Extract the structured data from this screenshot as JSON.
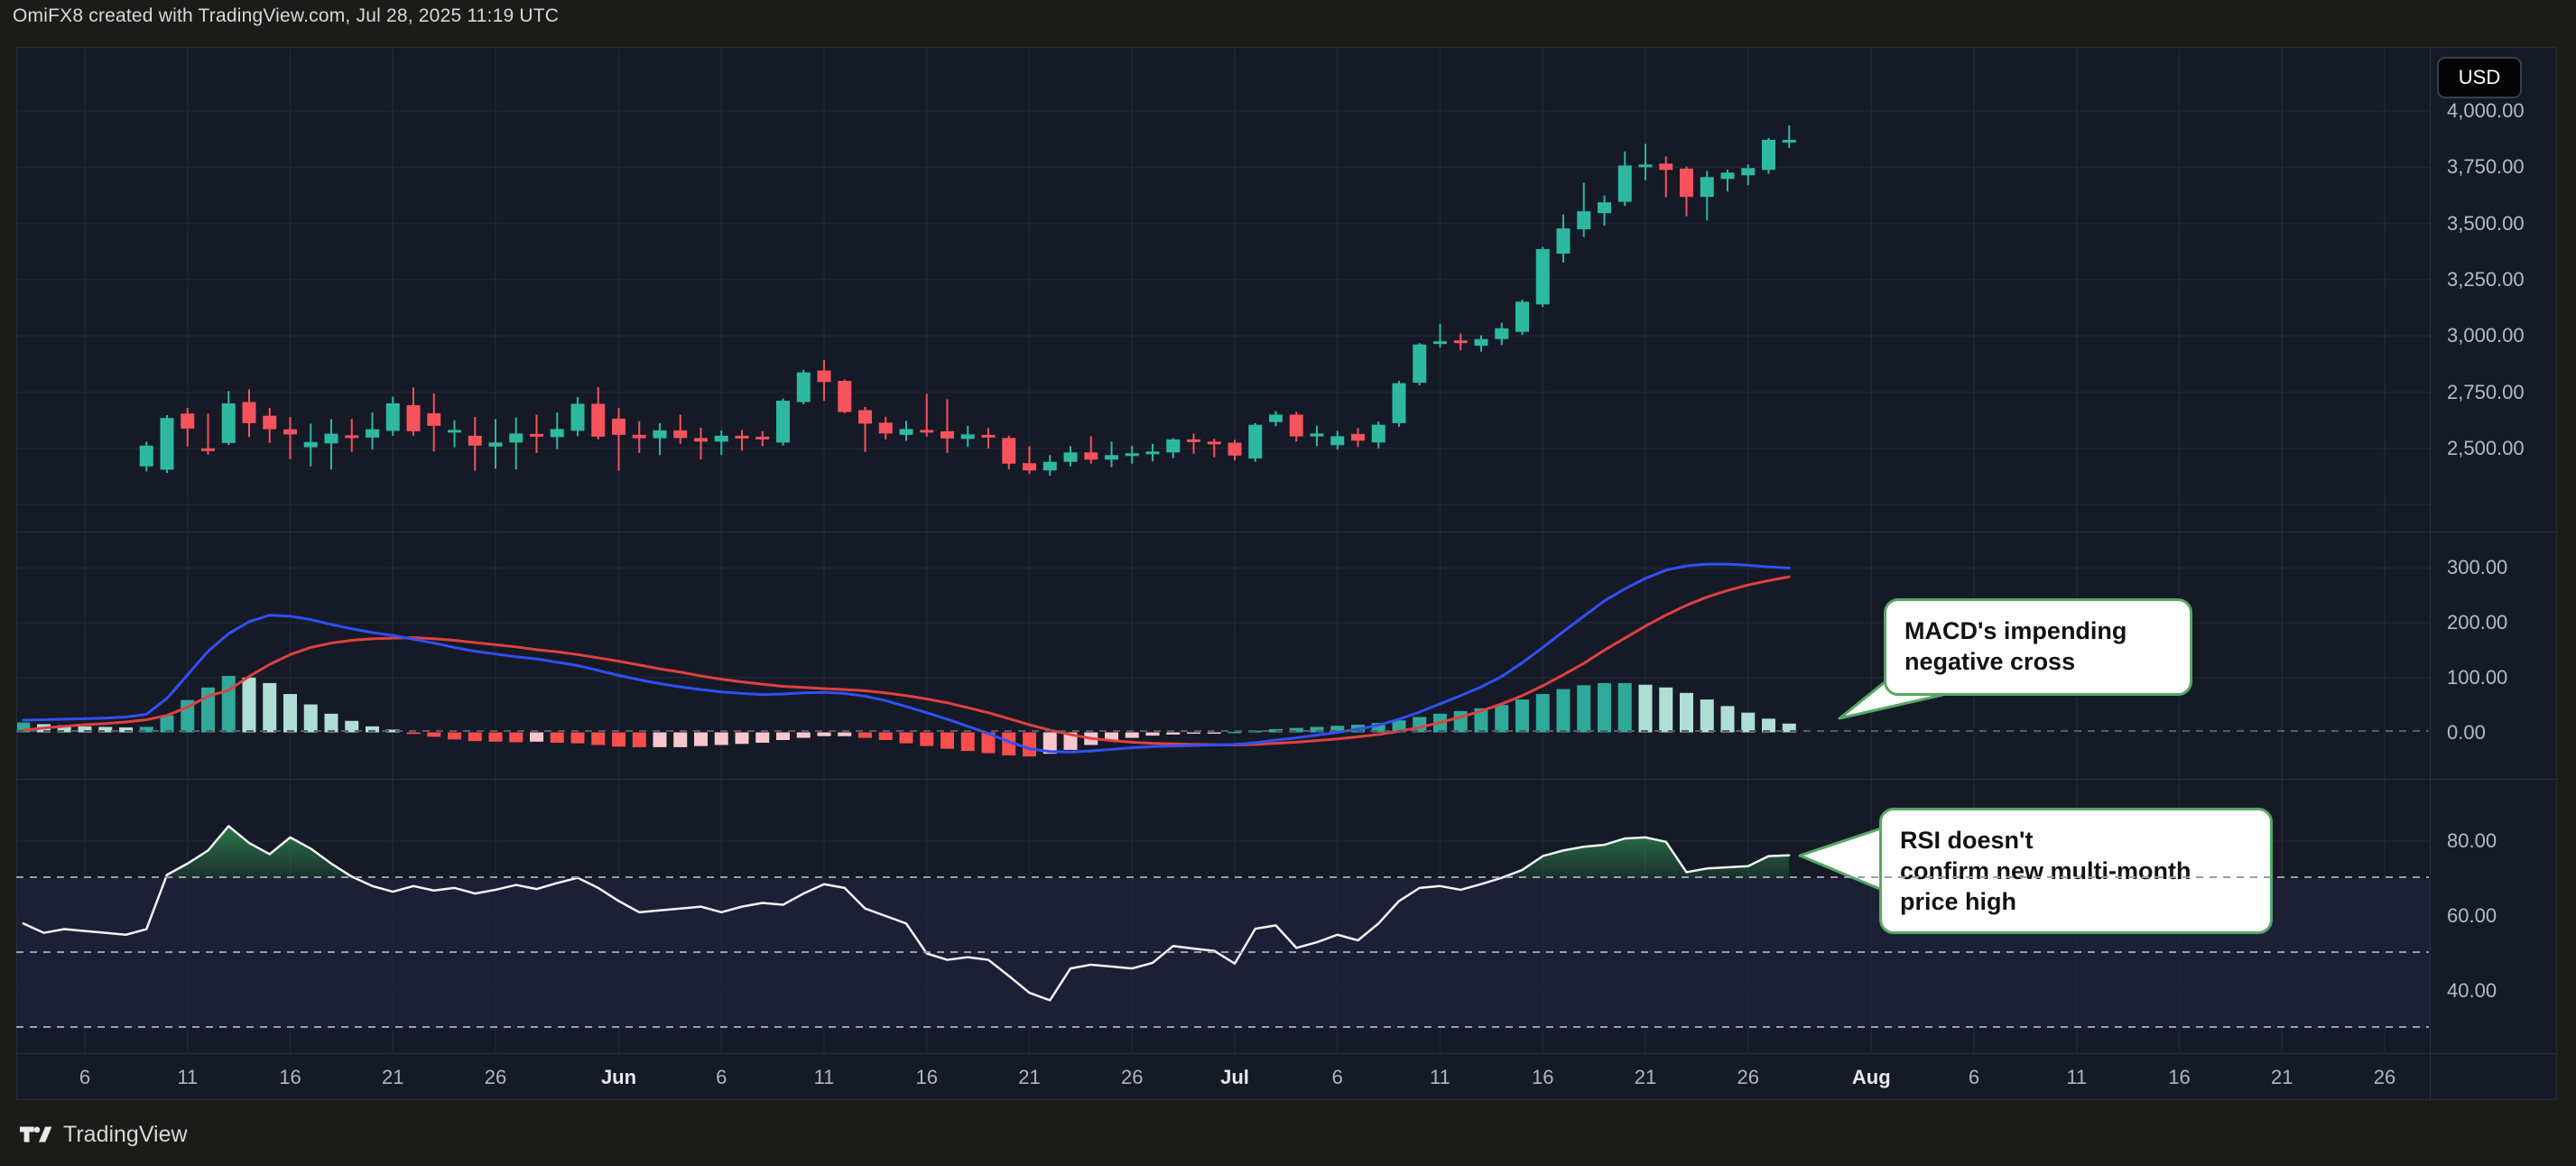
{
  "header": {
    "title": "OmiFX8 created with TradingView.com, Jul 28, 2025 11:19 UTC"
  },
  "footer": {
    "brand": "TradingView"
  },
  "price_axis": {
    "currency_label": "USD",
    "labels": [
      "4,000.00",
      "3,750.00",
      "3,500.00",
      "3,250.00",
      "3,000.00",
      "2,750.00",
      "2,500.00"
    ],
    "values": [
      4000,
      3750,
      3500,
      3250,
      3000,
      2750,
      2500
    ],
    "extra_grid": [
      2250
    ]
  },
  "macd_axis": {
    "labels": [
      "300.00",
      "200.00",
      "100.00",
      "0.00"
    ],
    "values": [
      300,
      200,
      100,
      0
    ],
    "zero_dashed": 0
  },
  "rsi_axis": {
    "labels": [
      "80.00",
      "60.00",
      "40.00"
    ],
    "values": [
      80,
      60,
      40
    ],
    "dashed_levels": [
      70,
      50,
      30
    ],
    "band": [
      30,
      70
    ]
  },
  "x_axis": {
    "start_date": "2025-05-06",
    "ticks": [
      {
        "label": "6",
        "day": 0,
        "month": false
      },
      {
        "label": "11",
        "day": 5,
        "month": false
      },
      {
        "label": "16",
        "day": 10,
        "month": false
      },
      {
        "label": "21",
        "day": 15,
        "month": false
      },
      {
        "label": "26",
        "day": 20,
        "month": false
      },
      {
        "label": "Jun",
        "day": 26,
        "month": true
      },
      {
        "label": "6",
        "day": 31,
        "month": false
      },
      {
        "label": "11",
        "day": 36,
        "month": false
      },
      {
        "label": "16",
        "day": 41,
        "month": false
      },
      {
        "label": "21",
        "day": 46,
        "month": false
      },
      {
        "label": "26",
        "day": 51,
        "month": false
      },
      {
        "label": "Jul",
        "day": 56,
        "month": true
      },
      {
        "label": "6",
        "day": 61,
        "month": false
      },
      {
        "label": "11",
        "day": 66,
        "month": false
      },
      {
        "label": "16",
        "day": 71,
        "month": false
      },
      {
        "label": "21",
        "day": 76,
        "month": false
      },
      {
        "label": "26",
        "day": 81,
        "month": false
      },
      {
        "label": "Aug",
        "day": 87,
        "month": true
      },
      {
        "label": "6",
        "day": 92,
        "month": false
      },
      {
        "label": "11",
        "day": 97,
        "month": false
      },
      {
        "label": "16",
        "day": 102,
        "month": false
      },
      {
        "label": "21",
        "day": 107,
        "month": false
      },
      {
        "label": "26",
        "day": 112,
        "month": false
      }
    ]
  },
  "annotations": {
    "macd_note": {
      "lines": [
        "MACD's impending",
        "negative cross"
      ]
    },
    "rsi_note": {
      "lines": [
        "RSI doesn't",
        "confirm new multi-month",
        "price high"
      ]
    }
  },
  "colors": {
    "up": "#2CB9A0",
    "down": "#F6535C",
    "macd_line": "#3050F8",
    "signal_line": "#E04040",
    "hist_up_rise": "#2FA99A",
    "hist_up_fall": "#AFDED6",
    "hist_dn_fall": "#FA4D4D",
    "hist_dn_rise": "#F8C6CD",
    "rsi_line": "#F2F3F5",
    "rsi_fill": "#2F8C4F",
    "grid": "#1F2532",
    "band_purple": "rgba(129,102,255,0.08)",
    "pane_bg": "#151A26",
    "page_bg": "#1B1B17"
  },
  "chart_data": {
    "type": "candlestick",
    "title": "Price with MACD and RSI panes",
    "currency": "USD",
    "interval": "1D",
    "price_pane": {
      "ylim": [
        2130,
        4281
      ],
      "candles_start_day": 3,
      "candles_start_date": "2025-05-09",
      "ohlc": [
        [
          2420,
          2530,
          2398,
          2512
        ],
        [
          2405,
          2648,
          2390,
          2635
        ],
        [
          2655,
          2680,
          2508,
          2588
        ],
        [
          2500,
          2655,
          2472,
          2488
        ],
        [
          2524,
          2755,
          2515,
          2700
        ],
        [
          2706,
          2762,
          2550,
          2612
        ],
        [
          2645,
          2680,
          2525,
          2585
        ],
        [
          2585,
          2640,
          2452,
          2562
        ],
        [
          2505,
          2610,
          2420,
          2528
        ],
        [
          2522,
          2630,
          2406,
          2565
        ],
        [
          2558,
          2630,
          2485,
          2548
        ],
        [
          2548,
          2660,
          2495,
          2585
        ],
        [
          2578,
          2730,
          2556,
          2700
        ],
        [
          2692,
          2770,
          2556,
          2576
        ],
        [
          2656,
          2745,
          2486,
          2600
        ],
        [
          2578,
          2625,
          2506,
          2582
        ],
        [
          2556,
          2640,
          2400,
          2512
        ],
        [
          2508,
          2630,
          2410,
          2526
        ],
        [
          2526,
          2637,
          2406,
          2566
        ],
        [
          2564,
          2650,
          2480,
          2558
        ],
        [
          2550,
          2660,
          2496,
          2586
        ],
        [
          2578,
          2728,
          2554,
          2698
        ],
        [
          2698,
          2772,
          2540,
          2552
        ],
        [
          2632,
          2680,
          2400,
          2560
        ],
        [
          2560,
          2620,
          2480,
          2545
        ],
        [
          2545,
          2612,
          2470,
          2580
        ],
        [
          2580,
          2650,
          2520,
          2546
        ],
        [
          2546,
          2592,
          2450,
          2530
        ],
        [
          2530,
          2580,
          2470,
          2556
        ],
        [
          2556,
          2582,
          2490,
          2550
        ],
        [
          2552,
          2576,
          2510,
          2546
        ],
        [
          2526,
          2722,
          2512,
          2712
        ],
        [
          2706,
          2850,
          2696,
          2838
        ],
        [
          2846,
          2892,
          2712,
          2795
        ],
        [
          2800,
          2806,
          2656,
          2662
        ],
        [
          2670,
          2684,
          2484,
          2610
        ],
        [
          2614,
          2640,
          2540,
          2566
        ],
        [
          2560,
          2622,
          2534,
          2586
        ],
        [
          2582,
          2742,
          2552,
          2576
        ],
        [
          2576,
          2718,
          2480,
          2544
        ],
        [
          2542,
          2600,
          2506,
          2562
        ],
        [
          2560,
          2590,
          2500,
          2552
        ],
        [
          2546,
          2556,
          2406,
          2432
        ],
        [
          2434,
          2510,
          2386,
          2402
        ],
        [
          2402,
          2470,
          2378,
          2440
        ],
        [
          2440,
          2510,
          2420,
          2482
        ],
        [
          2482,
          2554,
          2432,
          2450
        ],
        [
          2450,
          2530,
          2416,
          2470
        ],
        [
          2470,
          2512,
          2432,
          2478
        ],
        [
          2478,
          2520,
          2442,
          2486
        ],
        [
          2482,
          2546,
          2456,
          2540
        ],
        [
          2540,
          2566,
          2476,
          2530
        ],
        [
          2530,
          2542,
          2460,
          2525
        ],
        [
          2525,
          2538,
          2446,
          2468
        ],
        [
          2455,
          2612,
          2440,
          2605
        ],
        [
          2617,
          2665,
          2598,
          2650
        ],
        [
          2650,
          2662,
          2530,
          2553
        ],
        [
          2553,
          2600,
          2510,
          2566
        ],
        [
          2514,
          2578,
          2494,
          2554
        ],
        [
          2564,
          2590,
          2506,
          2534
        ],
        [
          2526,
          2620,
          2500,
          2605
        ],
        [
          2612,
          2800,
          2596,
          2790
        ],
        [
          2792,
          2968,
          2780,
          2962
        ],
        [
          2968,
          3054,
          2948,
          2976
        ],
        [
          2980,
          3010,
          2936,
          2972
        ],
        [
          2956,
          3002,
          2930,
          2986
        ],
        [
          2986,
          3058,
          2960,
          3034
        ],
        [
          3018,
          3162,
          3004,
          3152
        ],
        [
          3140,
          3396,
          3128,
          3386
        ],
        [
          3366,
          3540,
          3326,
          3478
        ],
        [
          3474,
          3680,
          3440,
          3554
        ],
        [
          3546,
          3624,
          3490,
          3594
        ],
        [
          3596,
          3820,
          3578,
          3758
        ],
        [
          3758,
          3854,
          3692,
          3762
        ],
        [
          3766,
          3798,
          3616,
          3738
        ],
        [
          3744,
          3754,
          3532,
          3618
        ],
        [
          3618,
          3734,
          3514,
          3706
        ],
        [
          3698,
          3740,
          3642,
          3726
        ],
        [
          3714,
          3762,
          3670,
          3746
        ],
        [
          3738,
          3880,
          3720,
          3872
        ],
        [
          3864,
          3936,
          3836,
          3872
        ]
      ]
    },
    "macd_pane": {
      "ylim": [
        -85,
        367
      ],
      "start_day": -3,
      "macd": [
        22,
        23,
        24,
        25,
        26,
        28,
        33,
        62,
        105,
        148,
        180,
        202,
        214,
        212,
        206,
        197,
        189,
        182,
        177,
        170,
        163,
        155,
        148,
        143,
        138,
        134,
        128,
        122,
        113,
        104,
        96,
        89,
        83,
        78,
        74,
        71,
        69,
        70,
        72,
        73,
        71,
        66,
        58,
        47,
        36,
        24,
        11,
        -2,
        -17,
        -30,
        -35,
        -36,
        -34,
        -31,
        -28,
        -26,
        -25,
        -24,
        -23,
        -22,
        -19,
        -14,
        -10,
        -5,
        0,
        6,
        13,
        24,
        37,
        52,
        67,
        83,
        102,
        127,
        155,
        184,
        212,
        240,
        262,
        281,
        296,
        304,
        307,
        307,
        305,
        302,
        300
      ],
      "signal": [
        4,
        8,
        11,
        14,
        16,
        19,
        23,
        31,
        46,
        66,
        77,
        102,
        124,
        142,
        155,
        163,
        168,
        171,
        172,
        173,
        171,
        168,
        164,
        160,
        156,
        151,
        147,
        142,
        136,
        130,
        123,
        116,
        110,
        103,
        97,
        92,
        88,
        84,
        82,
        80,
        78,
        76,
        72,
        67,
        61,
        54,
        45,
        36,
        25,
        14,
        4,
        -4,
        -11,
        -15,
        -18,
        -20,
        -21,
        -22,
        -22.5,
        -23,
        -22,
        -20,
        -18,
        -15,
        -12,
        -8,
        -4,
        2,
        9,
        18,
        28,
        39,
        52,
        67,
        85,
        105,
        126,
        150,
        172,
        194,
        214,
        232,
        247,
        259,
        269,
        277,
        284
      ],
      "hist": [
        18,
        15,
        13,
        11,
        10,
        9,
        10,
        31,
        59,
        82,
        103,
        100,
        90,
        70,
        51,
        34,
        21,
        11,
        5,
        -3,
        -8,
        -13,
        -16,
        -17,
        -18,
        -17,
        -19,
        -20,
        -23,
        -26,
        -27,
        -27,
        -27,
        -25,
        -23,
        -21,
        -19,
        -14,
        -10,
        -7,
        -7,
        -10,
        -14,
        -20,
        -25,
        -30,
        -34,
        -38,
        -42,
        -44,
        -39,
        -32,
        -23,
        -16,
        -10,
        -6,
        -4,
        -2,
        -0.5,
        1,
        3,
        6,
        8,
        10,
        12,
        14,
        17,
        22,
        28,
        34,
        39,
        44,
        50,
        60,
        70,
        79,
        86,
        90,
        90,
        87,
        82,
        72,
        60,
        48,
        36,
        25,
        16
      ]
    },
    "rsi_pane": {
      "ylim": [
        23.4,
        96.6
      ],
      "start_day": -3,
      "overbought": 70,
      "oversold": 30,
      "values": [
        58,
        55.5,
        56.5,
        56,
        55.5,
        55,
        56.5,
        71,
        74,
        77.5,
        84,
        79.5,
        76.5,
        81,
        78,
        74,
        70.5,
        68,
        66.5,
        68,
        66.8,
        67.5,
        66,
        67,
        68.3,
        67.2,
        68.8,
        70.2,
        67.5,
        64,
        61,
        61.5,
        62,
        62.5,
        61,
        62.5,
        63.5,
        63,
        66,
        68.5,
        67.5,
        62,
        60,
        58,
        50,
        48.3,
        49,
        48.3,
        44,
        39.5,
        37.5,
        46,
        47,
        46.5,
        46,
        47.5,
        52,
        51.3,
        50.7,
        47.3,
        56.6,
        57.5,
        51.5,
        53,
        55,
        53.5,
        58,
        64,
        67.5,
        68,
        67,
        68.5,
        70.2,
        72.3,
        76,
        77.5,
        78.5,
        79,
        80.7,
        81,
        79.8,
        71.7,
        72.7,
        73,
        73.3,
        76,
        76.2
      ]
    }
  }
}
